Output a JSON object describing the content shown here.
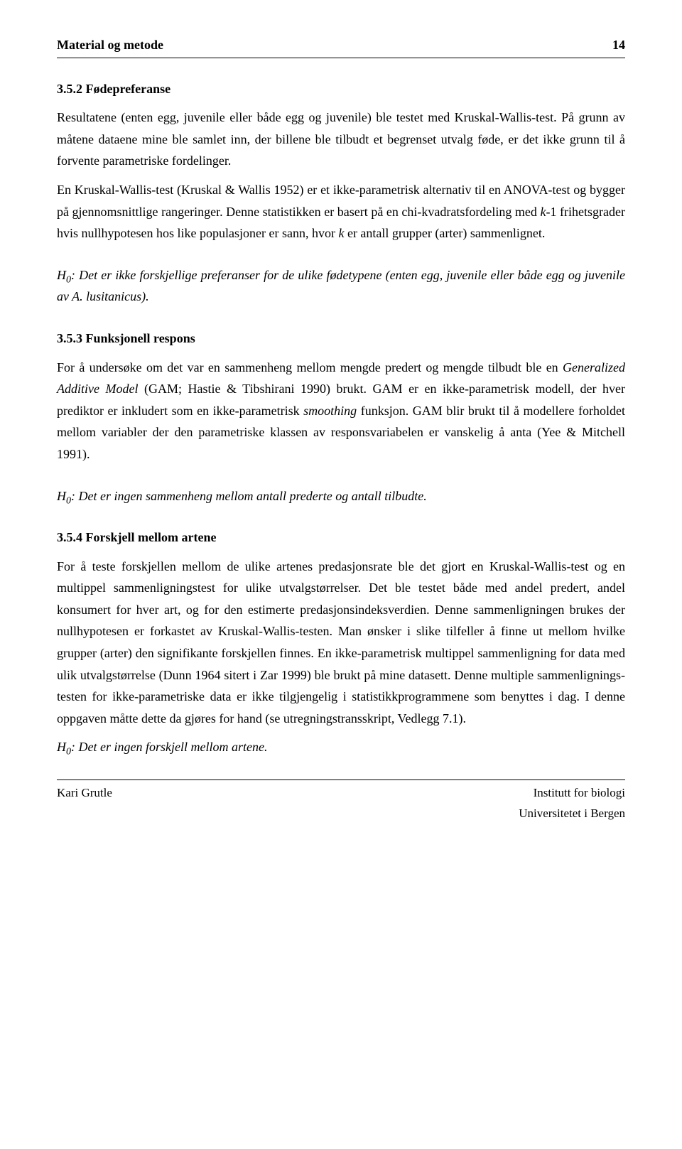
{
  "header": {
    "section": "Material og metode",
    "page": "14"
  },
  "s1": {
    "title": "3.5.2 Fødepreferanse",
    "p1a": "Resultatene (enten egg, juvenile eller både egg og juvenile) ble testet med Kruskal-Wallis-test. På grunn av måtene dataene mine ble samlet inn, der billene ble tilbudt et begrenset utvalg føde, er det ikke grunn til å forvente parametriske fordelinger.",
    "p1b": "En Kruskal-Wallis-test (Kruskal & Wallis 1952) er et ikke-parametrisk alternativ til en ANOVA-test og bygger på gjennomsnittlige rangeringer. Denne statistikken er basert på en chi-kvadratsfordeling med ",
    "p1c": "-1 frihetsgrader hvis nullhypotesen hos like populasjoner er sann, hvor ",
    "p1d": " er antall grupper (arter) sammenlignet.",
    "k": "k",
    "hyp_a": ": Det er ikke forskjellige preferanser for de ulike fødetypene (enten egg, juvenile eller både egg og juvenile av ",
    "hyp_b": "A. lusitanicus",
    "hyp_c": ")."
  },
  "s2": {
    "title": "3.5.3 Funksjonell respons",
    "p1a": "For å undersøke om det var en sammenheng mellom mengde predert og mengde tilbudt ble en ",
    "p1b": "Generalized Additive Model",
    "p1c": " (GAM; Hastie & Tibshirani 1990) brukt. GAM er en ikke-parametrisk modell, der hver prediktor er inkludert som en ikke-parametrisk ",
    "p1d": "smoothing",
    "p1e": " funksjon. GAM blir brukt til å modellere forholdet mellom variabler der den parametriske klassen av responsvariabelen er vanskelig å anta (Yee & Mitchell 1991).",
    "hyp": ": Det er ingen sammenheng mellom antall prederte og antall tilbudte."
  },
  "s3": {
    "title": "3.5.4 Forskjell mellom artene",
    "p1": "For å teste forskjellen mellom de ulike artenes predasjonsrate ble det gjort en Kruskal-Wallis-test og en multippel sammenligningstest for ulike utvalgstørrelser. Det ble testet både med andel predert, andel konsumert for hver art, og for den estimerte predasjonsindeksverdien. Denne sammenligningen brukes der nullhypotesen er forkastet av Kruskal-Wallis-testen. Man ønsker i slike tilfeller å finne ut mellom hvilke grupper (arter) den signifikante forskjellen finnes.  En ikke-parametrisk multippel sammenligning for data med ulik utvalgstørrelse (Dunn 1964 sitert i Zar 1999) ble brukt på mine datasett. Denne multiple sammenlignings-testen for ikke-parametriske data er ikke tilgjengelig i statistikkprogrammene som benyttes i dag. I denne oppgaven måtte dette da gjøres for hand (se utregningstransskript, Vedlegg 7.1).",
    "hyp": ": Det er ingen forskjell mellom artene."
  },
  "hlabel": "H",
  "hsub": "0",
  "footer": {
    "left": "Kari Grutle",
    "right1": "Institutt for biologi",
    "right2": "Universitetet i Bergen"
  }
}
